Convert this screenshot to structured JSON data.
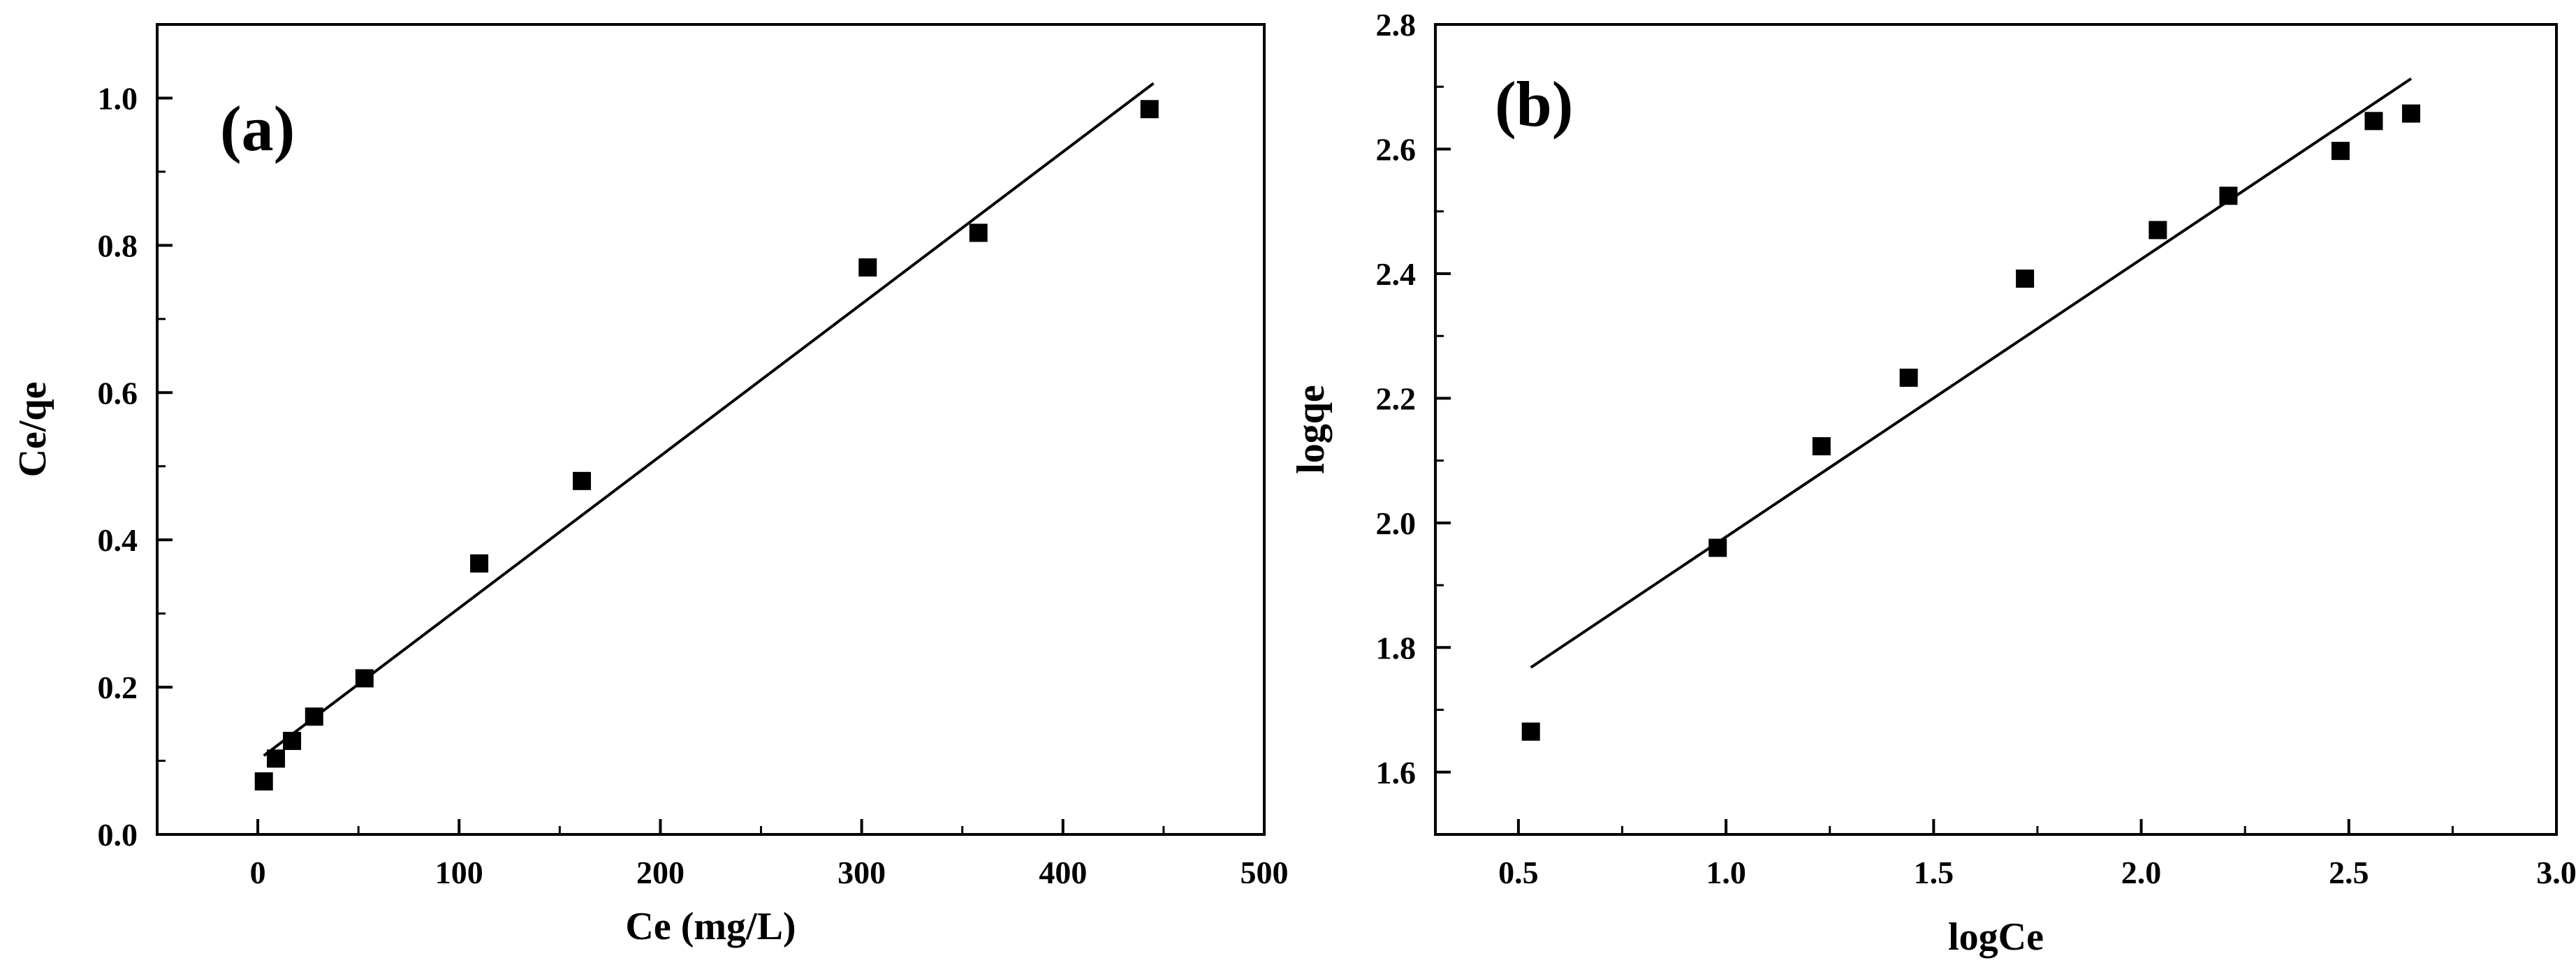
{
  "chart_data": [
    {
      "type": "scatter",
      "panel_label": "(a)",
      "title": "",
      "xlabel": "Ce (mg/L)",
      "ylabel": "Ce/qe",
      "xlim": [
        -50,
        500
      ],
      "ylim": [
        0.0,
        1.1
      ],
      "xticks": [
        0,
        100,
        200,
        300,
        400,
        500
      ],
      "xtick_labels": [
        "0",
        "100",
        "200",
        "300",
        "400",
        "500"
      ],
      "yticks": [
        0.0,
        0.2,
        0.4,
        0.6,
        0.8,
        1.0
      ],
      "ytick_labels": [
        "0.0",
        "0.2",
        "0.4",
        "0.6",
        "0.8",
        "1.0"
      ],
      "grid": false,
      "series": [
        {
          "name": "data",
          "marker": "square",
          "x": [
            3,
            9,
            17,
            28,
            53,
            110,
            161,
            303,
            358,
            443
          ],
          "y": [
            0.072,
            0.103,
            0.127,
            0.16,
            0.212,
            0.368,
            0.48,
            0.77,
            0.817,
            0.985
          ]
        },
        {
          "name": "fit",
          "style": "line",
          "x": [
            3,
            445
          ],
          "y": [
            0.107,
            1.02
          ]
        }
      ]
    },
    {
      "type": "scatter",
      "panel_label": "(b)",
      "title": "",
      "xlabel": "logCe",
      "ylabel": "logqe",
      "xlim": [
        0.3,
        3.0
      ],
      "ylim": [
        1.5,
        2.8
      ],
      "xticks": [
        0.5,
        1.0,
        1.5,
        2.0,
        2.5,
        3.0
      ],
      "xtick_labels": [
        "0.5",
        "1.0",
        "1.5",
        "2.0",
        "2.5",
        "3.0"
      ],
      "yticks": [
        1.6,
        1.8,
        2.0,
        2.2,
        2.4,
        2.6,
        2.8
      ],
      "ytick_labels": [
        "1.6",
        "1.8",
        "2.0",
        "2.2",
        "2.4",
        "2.6",
        "2.8"
      ],
      "grid": false,
      "series": [
        {
          "name": "data",
          "marker": "square",
          "x": [
            0.53,
            0.98,
            1.23,
            1.44,
            1.72,
            2.04,
            2.21,
            2.48,
            2.56,
            2.65
          ],
          "y": [
            1.665,
            1.96,
            2.123,
            2.233,
            2.392,
            2.47,
            2.525,
            2.597,
            2.645,
            2.657
          ]
        },
        {
          "name": "fit",
          "style": "line",
          "x": [
            0.53,
            2.65
          ],
          "y": [
            1.768,
            2.713
          ]
        }
      ]
    }
  ]
}
